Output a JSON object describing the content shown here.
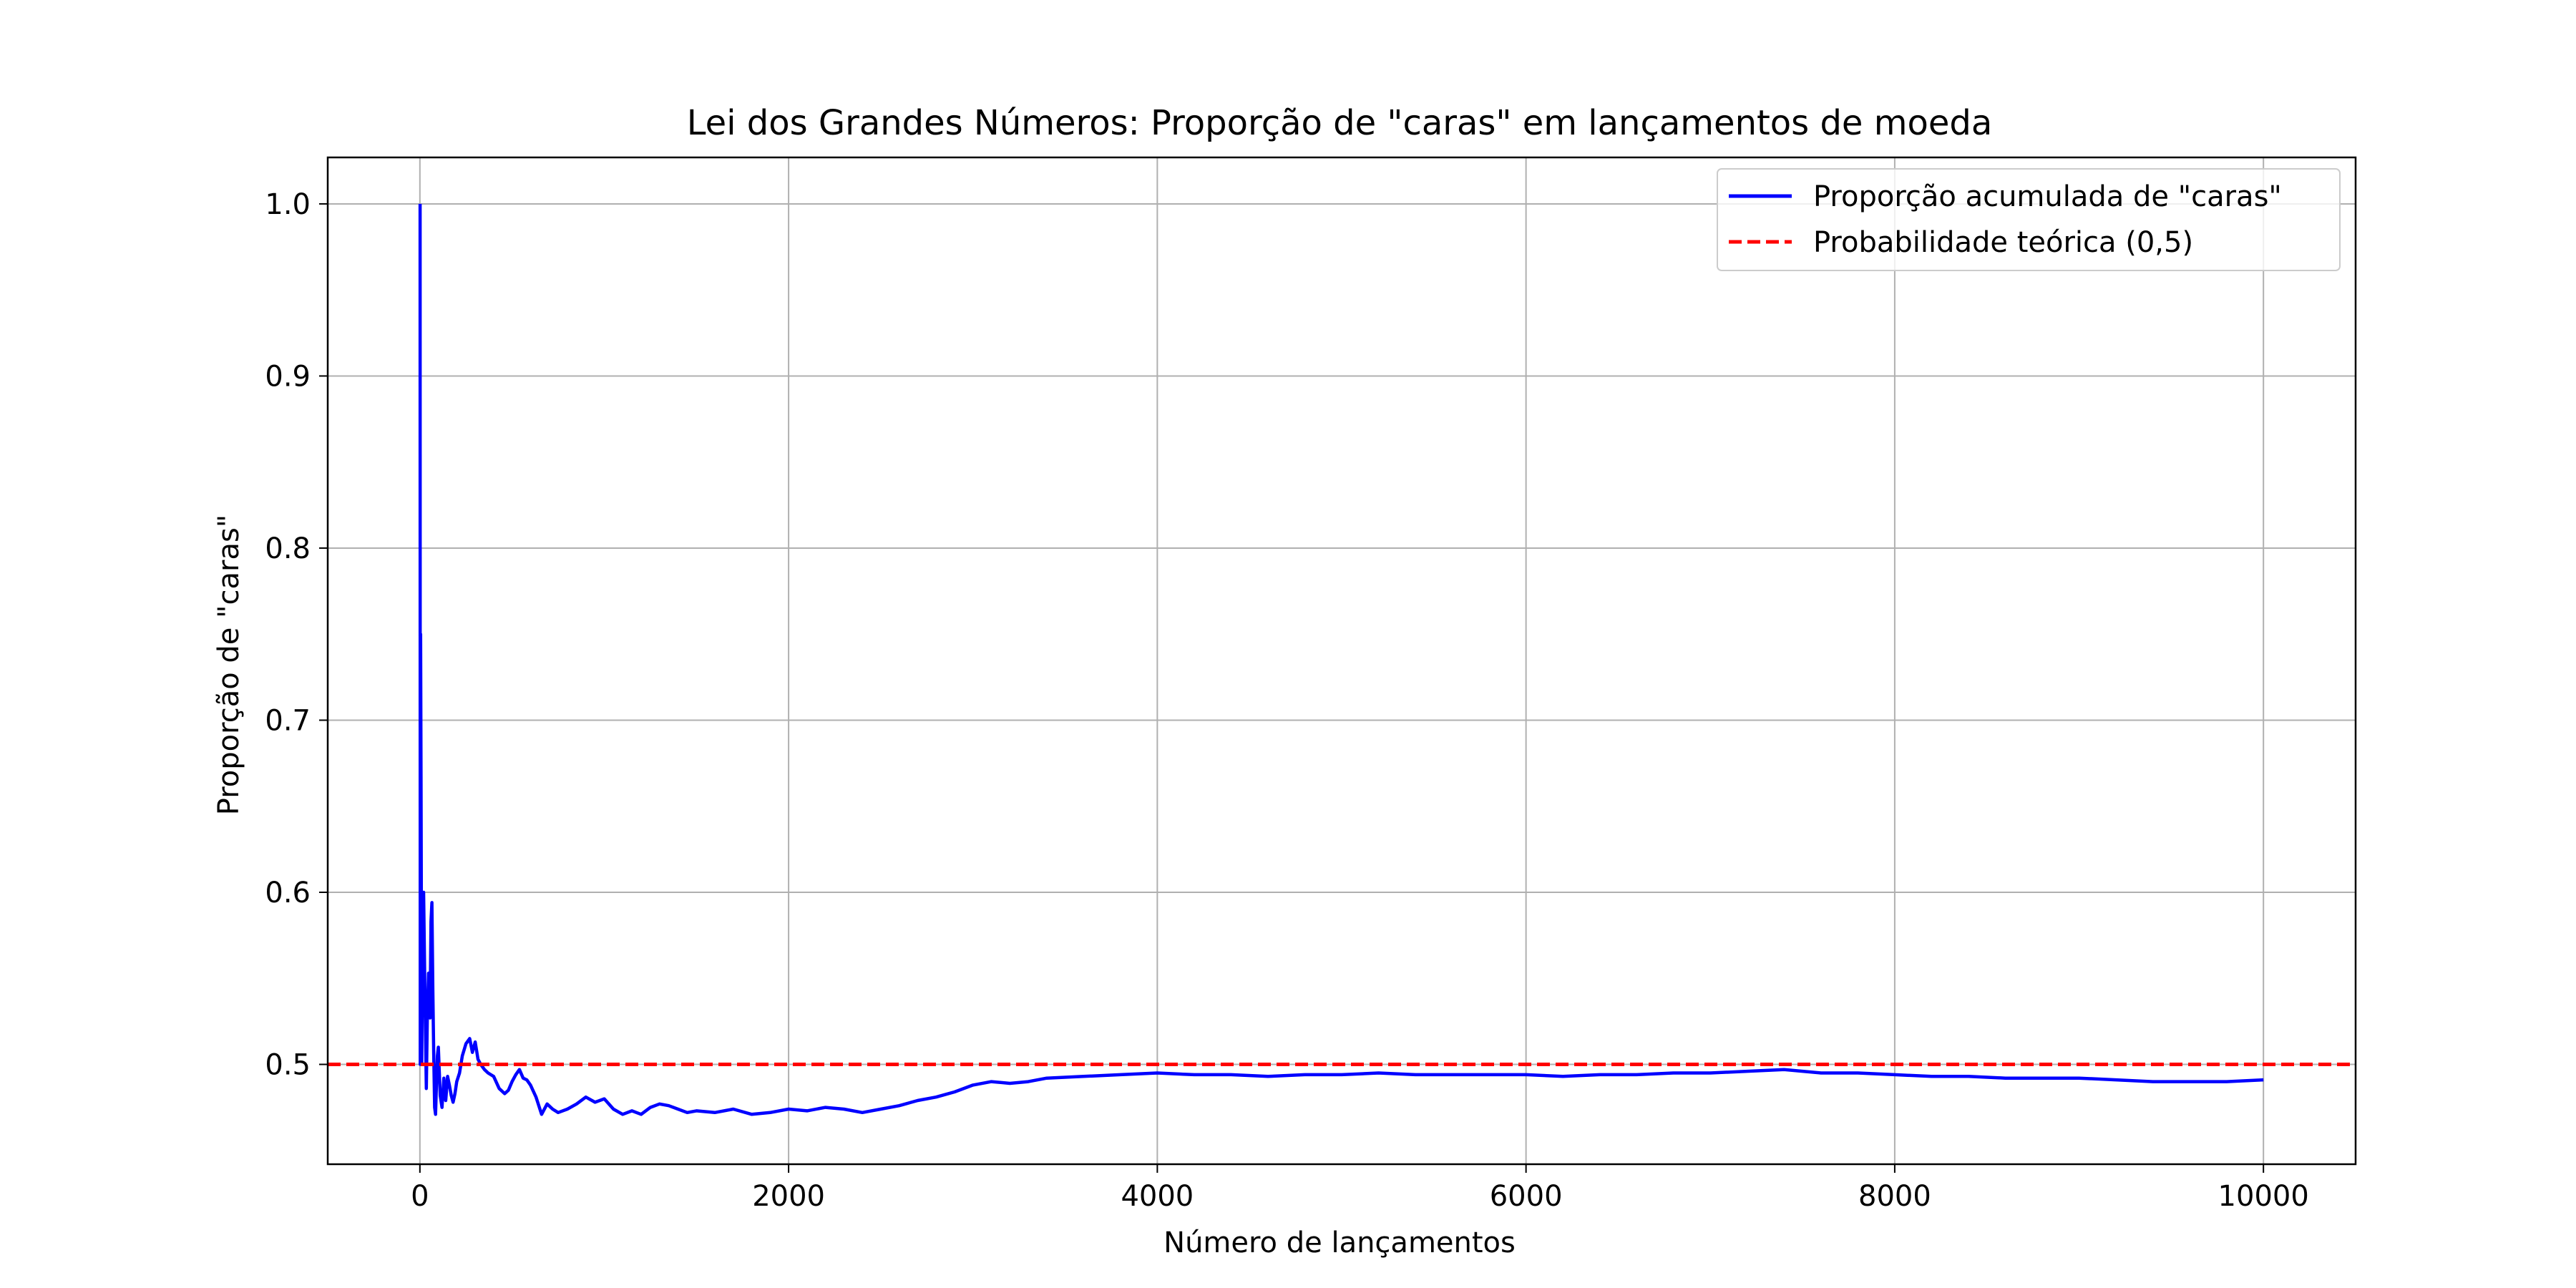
{
  "chart_data": {
    "type": "line",
    "title": "Lei dos Grandes Números: Proporção de \"caras\" em lançamentos de moeda",
    "xlabel": "Número de lançamentos",
    "ylabel": "Proporção de \"caras\"",
    "xlim": [
      -500,
      10500
    ],
    "ylim": [
      0.442,
      1.027
    ],
    "xticks": [
      0,
      2000,
      4000,
      6000,
      8000,
      10000
    ],
    "xtick_labels": [
      "0",
      "2000",
      "4000",
      "6000",
      "8000",
      "10000"
    ],
    "yticks": [
      0.5,
      0.6,
      0.7,
      0.8,
      0.9,
      1.0
    ],
    "ytick_labels": [
      "0.5",
      "0.6",
      "0.7",
      "0.8",
      "0.9",
      "1.0"
    ],
    "grid": true,
    "legend_position": "top-right",
    "series": [
      {
        "name": "Proporção acumulada de \"caras\"",
        "color": "#0000ff",
        "style": "solid",
        "x": [
          1,
          2,
          4,
          6,
          10,
          14,
          20,
          28,
          35,
          40,
          47,
          55,
          60,
          65,
          70,
          75,
          80,
          85,
          90,
          95,
          100,
          110,
          120,
          130,
          140,
          150,
          160,
          170,
          180,
          190,
          200,
          215,
          230,
          250,
          270,
          285,
          300,
          315,
          330,
          350,
          370,
          400,
          430,
          460,
          480,
          500,
          520,
          540,
          560,
          580,
          600,
          630,
          660,
          690,
          720,
          750,
          800,
          850,
          900,
          950,
          1000,
          1050,
          1100,
          1150,
          1200,
          1250,
          1300,
          1350,
          1400,
          1450,
          1500,
          1600,
          1700,
          1800,
          1900,
          2000,
          2100,
          2200,
          2300,
          2400,
          2500,
          2600,
          2700,
          2800,
          2900,
          3000,
          3100,
          3200,
          3300,
          3400,
          3600,
          3800,
          4000,
          4200,
          4400,
          4600,
          4800,
          5000,
          5200,
          5400,
          5600,
          5800,
          6000,
          6200,
          6400,
          6600,
          6800,
          7000,
          7200,
          7400,
          7600,
          7800,
          8000,
          8200,
          8400,
          8600,
          8800,
          9000,
          9200,
          9400,
          9600,
          9800,
          10000
        ],
        "y": [
          1.0,
          0.5,
          0.75,
          0.667,
          0.5,
          0.571,
          0.6,
          0.536,
          0.486,
          0.525,
          0.553,
          0.527,
          0.583,
          0.594,
          0.543,
          0.507,
          0.475,
          0.471,
          0.489,
          0.505,
          0.51,
          0.482,
          0.475,
          0.492,
          0.479,
          0.493,
          0.488,
          0.482,
          0.478,
          0.483,
          0.49,
          0.495,
          0.505,
          0.512,
          0.515,
          0.507,
          0.513,
          0.503,
          0.5,
          0.497,
          0.495,
          0.493,
          0.486,
          0.483,
          0.485,
          0.49,
          0.494,
          0.497,
          0.492,
          0.491,
          0.488,
          0.481,
          0.471,
          0.477,
          0.474,
          0.472,
          0.474,
          0.477,
          0.481,
          0.478,
          0.48,
          0.474,
          0.471,
          0.473,
          0.471,
          0.475,
          0.477,
          0.476,
          0.474,
          0.472,
          0.473,
          0.472,
          0.474,
          0.471,
          0.472,
          0.474,
          0.473,
          0.475,
          0.474,
          0.472,
          0.474,
          0.476,
          0.479,
          0.481,
          0.484,
          0.488,
          0.49,
          0.489,
          0.49,
          0.492,
          0.493,
          0.494,
          0.495,
          0.494,
          0.494,
          0.493,
          0.494,
          0.494,
          0.495,
          0.494,
          0.494,
          0.494,
          0.494,
          0.493,
          0.494,
          0.494,
          0.495,
          0.495,
          0.496,
          0.497,
          0.495,
          0.495,
          0.494,
          0.493,
          0.493,
          0.492,
          0.492,
          0.492,
          0.491,
          0.49,
          0.49,
          0.49,
          0.491
        ]
      },
      {
        "name": "Probabilidade teórica (0,5)",
        "color": "#ff0000",
        "style": "dashed",
        "hline": 0.5
      }
    ]
  }
}
